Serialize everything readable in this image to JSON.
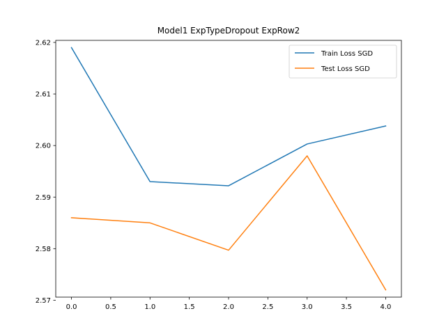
{
  "chart_data": {
    "type": "line",
    "title": "Model1 ExpTypeDropout ExpRow2",
    "xlabel": "",
    "ylabel": "",
    "x": [
      0,
      1,
      2,
      3,
      4
    ],
    "series": [
      {
        "name": "Train Loss SGD",
        "color": "#1f77b4",
        "values": [
          2.619,
          2.593,
          2.5922,
          2.6003,
          2.6038
        ]
      },
      {
        "name": "Test Loss SGD",
        "color": "#ff7f0e",
        "values": [
          2.586,
          2.585,
          2.5797,
          2.598,
          2.572
        ]
      }
    ],
    "xlim": [
      -0.2,
      4.2
    ],
    "ylim": [
      2.5706,
      2.6204
    ],
    "xticks": [
      0.0,
      0.5,
      1.0,
      1.5,
      2.0,
      2.5,
      3.0,
      3.5,
      4.0
    ],
    "xtick_labels": [
      "0.0",
      "0.5",
      "1.0",
      "1.5",
      "2.0",
      "2.5",
      "3.0",
      "3.5",
      "4.0"
    ],
    "yticks": [
      2.57,
      2.58,
      2.59,
      2.6,
      2.61,
      2.62
    ],
    "ytick_labels": [
      "2.57",
      "2.58",
      "2.59",
      "2.60",
      "2.61",
      "2.62"
    ],
    "grid": false,
    "legend_position": "top-right"
  }
}
